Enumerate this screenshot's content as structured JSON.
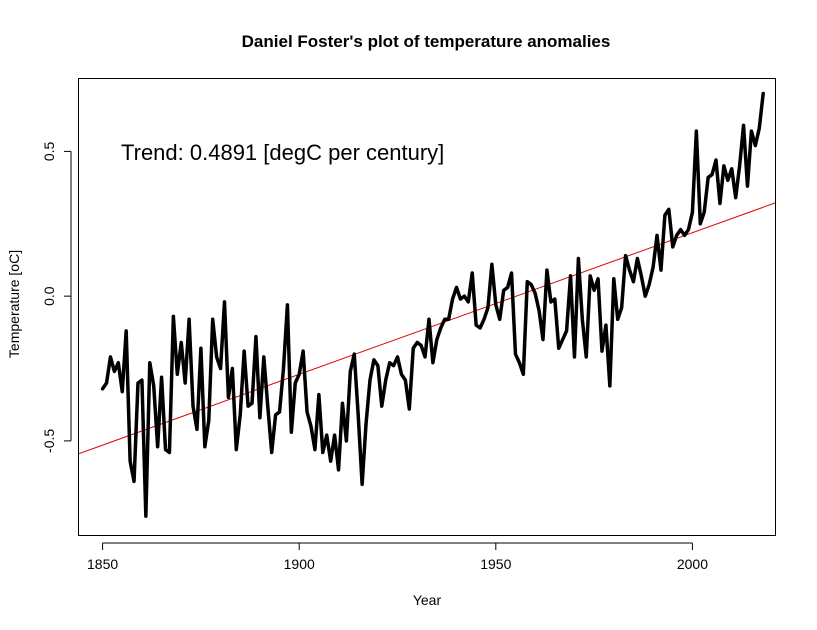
{
  "chart_data": {
    "type": "line",
    "title": "Daniel Foster's plot of temperature anomalies",
    "xlabel": "Year",
    "ylabel": "Temperature [oC]",
    "xlim": [
      1844,
      2021
    ],
    "ylim": [
      -0.825,
      0.75
    ],
    "x_ticks": [
      1850,
      1900,
      1950,
      2000
    ],
    "x_tick_labels": [
      "1850",
      "1900",
      "1950",
      "2000"
    ],
    "y_ticks": [
      -0.5,
      0.0,
      0.5
    ],
    "y_tick_labels": [
      "-0.5",
      "0.0",
      "0.5"
    ],
    "annotation": "Trend: 0.4891 [degC per century]",
    "grid": false,
    "legend": "none",
    "colors": {
      "series": "#000000",
      "trend": "#dd0000"
    },
    "trend_line": {
      "slope_per_year": 0.004891,
      "intercept_year": 1900,
      "intercept_value": -0.27
    },
    "series": [
      {
        "start_year": 1850,
        "values": [
          -0.32,
          -0.3,
          -0.21,
          -0.26,
          -0.23,
          -0.33,
          -0.12,
          -0.57,
          -0.64,
          -0.3,
          -0.29,
          -0.76,
          -0.23,
          -0.31,
          -0.52,
          -0.28,
          -0.53,
          -0.54,
          -0.07,
          -0.27,
          -0.16,
          -0.3,
          -0.08,
          -0.38,
          -0.46,
          -0.18,
          -0.52,
          -0.43,
          -0.08,
          -0.21,
          -0.25,
          -0.02,
          -0.35,
          -0.25,
          -0.53,
          -0.41,
          -0.19,
          -0.38,
          -0.37,
          -0.14,
          -0.42,
          -0.21,
          -0.38,
          -0.54,
          -0.41,
          -0.4,
          -0.25,
          -0.03,
          -0.47,
          -0.3,
          -0.27,
          -0.19,
          -0.4,
          -0.45,
          -0.53,
          -0.34,
          -0.54,
          -0.48,
          -0.57,
          -0.48,
          -0.6,
          -0.37,
          -0.5,
          -0.26,
          -0.2,
          -0.41,
          -0.65,
          -0.44,
          -0.29,
          -0.22,
          -0.24,
          -0.38,
          -0.29,
          -0.23,
          -0.24,
          -0.21,
          -0.27,
          -0.29,
          -0.39,
          -0.18,
          -0.16,
          -0.17,
          -0.21,
          -0.08,
          -0.23,
          -0.15,
          -0.11,
          -0.08,
          -0.08,
          -0.01,
          0.03,
          -0.01,
          0.0,
          -0.02,
          0.08,
          -0.1,
          -0.11,
          -0.08,
          -0.04,
          0.11,
          -0.03,
          -0.08,
          0.02,
          0.03,
          0.08,
          -0.2,
          -0.23,
          -0.27,
          0.05,
          0.04,
          0.01,
          -0.05,
          -0.15,
          0.09,
          -0.02,
          -0.01,
          -0.18,
          -0.15,
          -0.12,
          0.07,
          -0.21,
          0.13,
          -0.08,
          -0.21,
          0.07,
          0.02,
          0.06,
          -0.19,
          -0.1,
          -0.31,
          0.06,
          -0.08,
          -0.04,
          0.14,
          0.09,
          0.05,
          0.13,
          0.07,
          0.0,
          0.04,
          0.1,
          0.21,
          0.09,
          0.28,
          0.3,
          0.17,
          0.21,
          0.23,
          0.21,
          0.23,
          0.29,
          0.57,
          0.25,
          0.29,
          0.41,
          0.42,
          0.47,
          0.32,
          0.45,
          0.4,
          0.44,
          0.34,
          0.45,
          0.59,
          0.38,
          0.57,
          0.52,
          0.58,
          0.7
        ]
      }
    ]
  }
}
